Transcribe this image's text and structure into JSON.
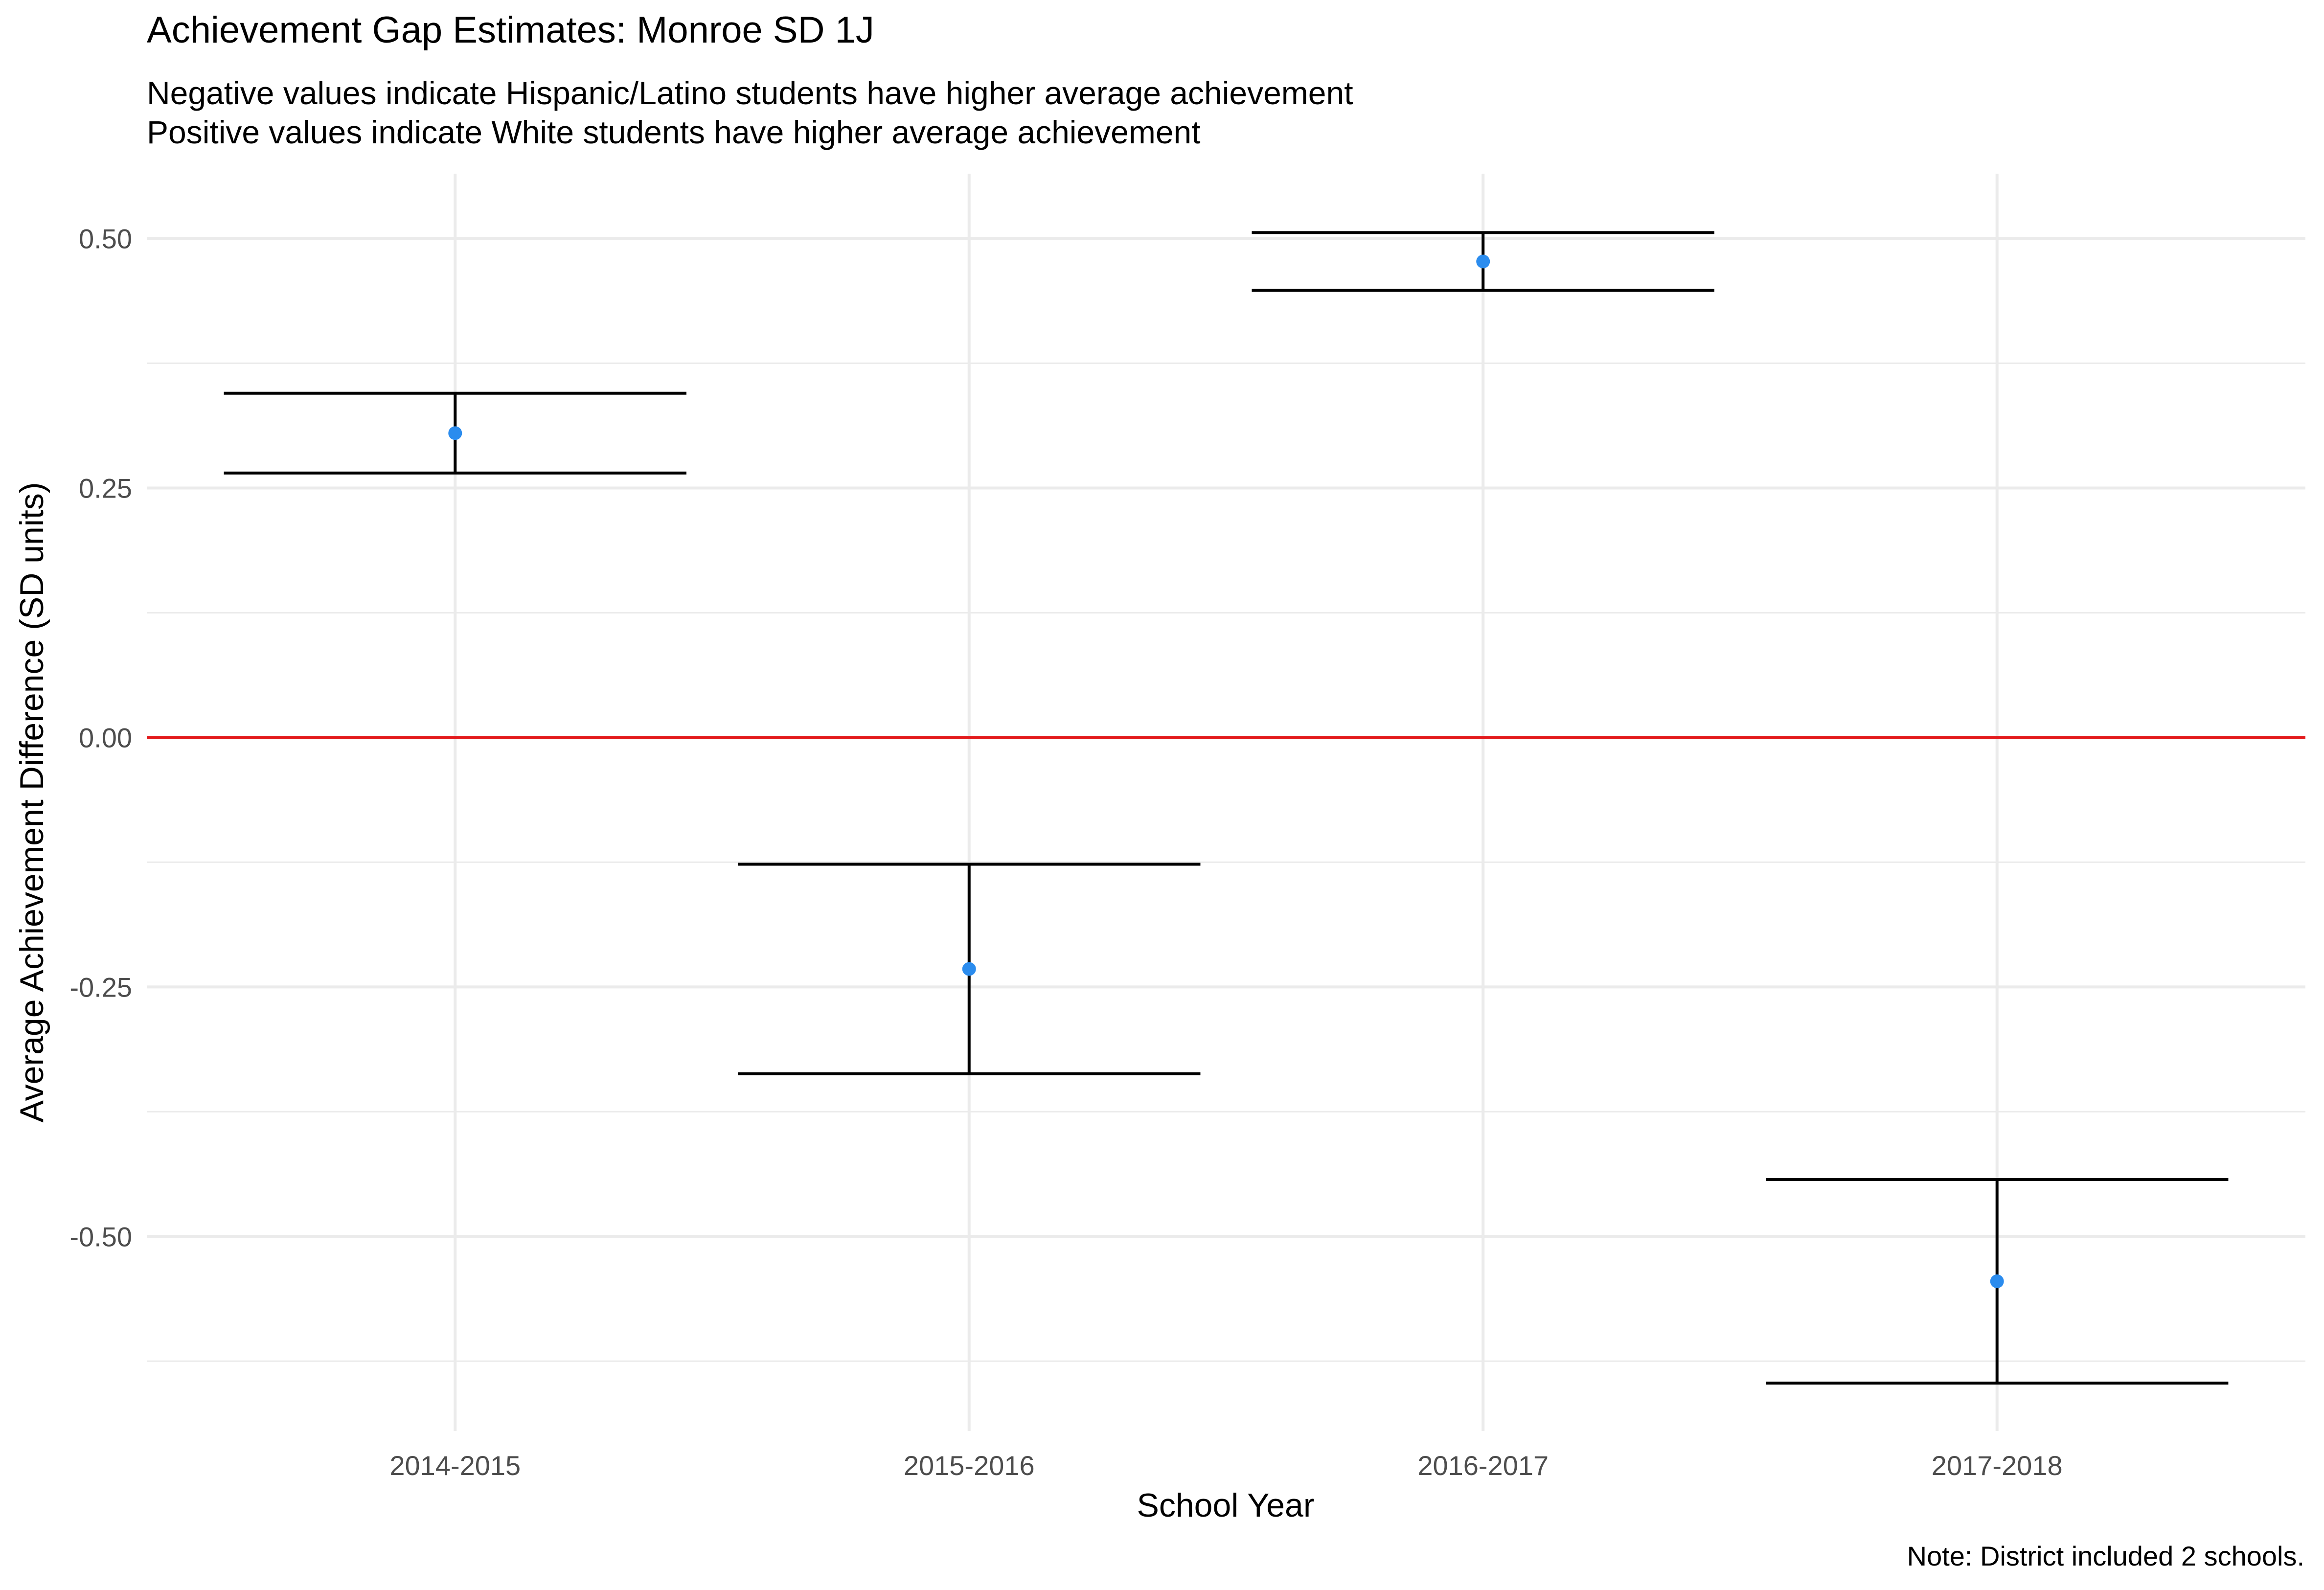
{
  "chart_data": {
    "type": "errorbar",
    "title": "Achievement Gap Estimates: Monroe SD 1J",
    "subtitle": [
      "Negative values indicate Hispanic/Latino students have higher average achievement",
      "Positive values indicate White students have higher average achievement"
    ],
    "caption": "Note: District included 2 schools.",
    "xlabel": "School Year",
    "ylabel": "Average Achievement Difference (SD units)",
    "categories": [
      "2014-2015",
      "2015-2016",
      "2016-2017",
      "2017-2018"
    ],
    "values": [
      0.305,
      -0.232,
      0.477,
      -0.545
    ],
    "lower": [
      0.265,
      -0.337,
      0.448,
      -0.647
    ],
    "upper": [
      0.345,
      -0.127,
      0.506,
      -0.443
    ],
    "y_ticks": [
      0.5,
      0.25,
      0.0,
      -0.25,
      -0.5
    ],
    "y_tick_labels": [
      "0.50",
      "0.25",
      "0.00",
      "-0.25",
      "-0.50"
    ],
    "ylim": [
      -0.695,
      0.565
    ],
    "reference_line": {
      "y": 0,
      "color": "#e31a1c"
    },
    "grid": true,
    "legend": "none",
    "colors": {
      "point": "#2b8cee",
      "errorbar": "#000000",
      "grid": "#ebebeb"
    }
  }
}
